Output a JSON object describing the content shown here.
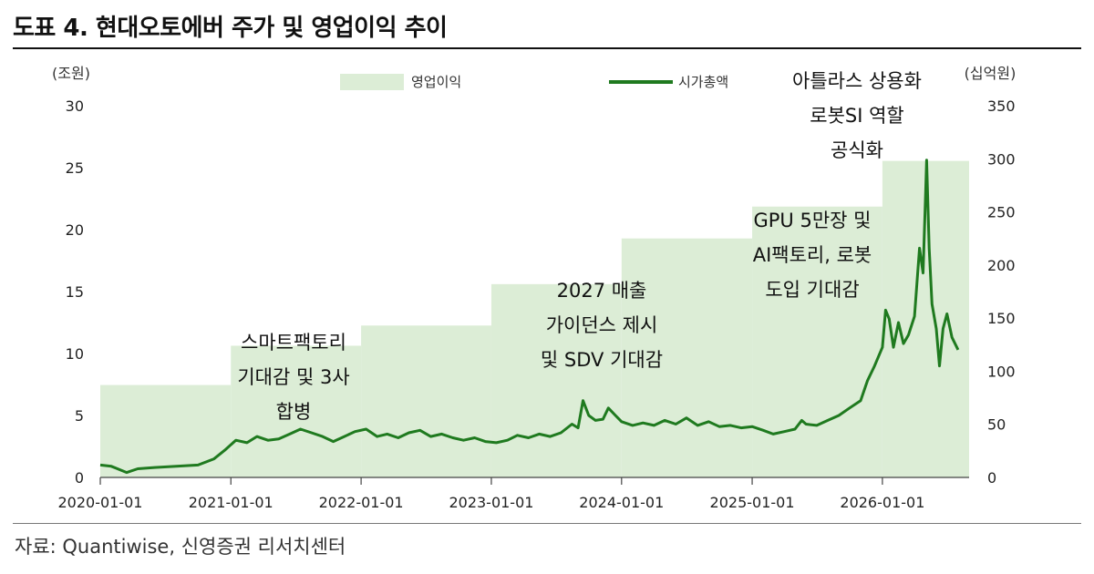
{
  "title": "도표 4. 현대오토에버 주가 및 영업이익 추이",
  "source": "자료: Quantiwise, 신영증권 리서치센터",
  "colors": {
    "line": "#1f7a1f",
    "area": "#dcedd6",
    "axis": "#444444"
  },
  "chart_data": {
    "type": "line",
    "title": "",
    "y_left": {
      "unit_label": "(조원)",
      "range": [
        0,
        30
      ],
      "ticks": [
        "0",
        "5",
        "10",
        "15",
        "20",
        "25",
        "30"
      ]
    },
    "y_right": {
      "unit_label": "(십억원)",
      "range": [
        0,
        350
      ],
      "ticks": [
        "0",
        "50",
        "100",
        "150",
        "200",
        "250",
        "300",
        "350"
      ]
    },
    "x_range": [
      "2020-01-01",
      "2026-09-01"
    ],
    "x_ticks": [
      "2020-01-01",
      "2021-01-01",
      "2022-01-01",
      "2023-01-01",
      "2024-01-01",
      "2025-01-01",
      "2026-01-01"
    ],
    "legend": {
      "position": "top",
      "area_label": "영업이익",
      "line_label": "시가총액"
    },
    "series": [
      {
        "name": "영업이익",
        "type": "step-area",
        "axis": "right",
        "points": [
          {
            "start": "2020-01-01",
            "value": 87
          },
          {
            "start": "2021-01-01",
            "value": 124
          },
          {
            "start": "2022-01-01",
            "value": 143
          },
          {
            "start": "2023-01-01",
            "value": 182
          },
          {
            "start": "2024-01-01",
            "value": 225
          },
          {
            "start": "2025-01-01",
            "value": 255
          },
          {
            "start": "2026-01-01",
            "value": 298
          }
        ]
      },
      {
        "name": "시가총액",
        "type": "line",
        "axis": "left",
        "points": [
          [
            "2020-01-01",
            1.0
          ],
          [
            "2020-02-01",
            0.9
          ],
          [
            "2020-03-15",
            0.4
          ],
          [
            "2020-04-15",
            0.7
          ],
          [
            "2020-06-01",
            0.8
          ],
          [
            "2020-08-01",
            0.9
          ],
          [
            "2020-10-01",
            1.0
          ],
          [
            "2020-11-15",
            1.5
          ],
          [
            "2020-12-15",
            2.2
          ],
          [
            "2021-01-15",
            3.0
          ],
          [
            "2021-02-15",
            2.8
          ],
          [
            "2021-03-15",
            3.3
          ],
          [
            "2021-04-15",
            3.0
          ],
          [
            "2021-05-15",
            3.1
          ],
          [
            "2021-06-15",
            3.5
          ],
          [
            "2021-07-15",
            3.9
          ],
          [
            "2021-08-15",
            3.6
          ],
          [
            "2021-09-15",
            3.3
          ],
          [
            "2021-10-15",
            2.9
          ],
          [
            "2021-11-15",
            3.3
          ],
          [
            "2021-12-15",
            3.7
          ],
          [
            "2022-01-15",
            3.9
          ],
          [
            "2022-02-15",
            3.3
          ],
          [
            "2022-03-15",
            3.5
          ],
          [
            "2022-04-15",
            3.2
          ],
          [
            "2022-05-15",
            3.6
          ],
          [
            "2022-06-15",
            3.8
          ],
          [
            "2022-07-15",
            3.3
          ],
          [
            "2022-08-15",
            3.5
          ],
          [
            "2022-09-15",
            3.2
          ],
          [
            "2022-10-15",
            3.0
          ],
          [
            "2022-11-15",
            3.2
          ],
          [
            "2022-12-15",
            2.9
          ],
          [
            "2023-01-15",
            2.8
          ],
          [
            "2023-02-15",
            3.0
          ],
          [
            "2023-03-15",
            3.4
          ],
          [
            "2023-04-15",
            3.2
          ],
          [
            "2023-05-15",
            3.5
          ],
          [
            "2023-06-15",
            3.3
          ],
          [
            "2023-07-15",
            3.6
          ],
          [
            "2023-08-15",
            4.3
          ],
          [
            "2023-09-01",
            4.0
          ],
          [
            "2023-09-15",
            6.2
          ],
          [
            "2023-10-01",
            5.0
          ],
          [
            "2023-10-20",
            4.6
          ],
          [
            "2023-11-10",
            4.7
          ],
          [
            "2023-11-25",
            5.6
          ],
          [
            "2023-12-15",
            5.0
          ],
          [
            "2024-01-01",
            4.5
          ],
          [
            "2024-02-01",
            4.2
          ],
          [
            "2024-03-01",
            4.4
          ],
          [
            "2024-04-01",
            4.2
          ],
          [
            "2024-05-01",
            4.6
          ],
          [
            "2024-06-01",
            4.3
          ],
          [
            "2024-07-01",
            4.8
          ],
          [
            "2024-08-01",
            4.2
          ],
          [
            "2024-09-01",
            4.5
          ],
          [
            "2024-10-01",
            4.1
          ],
          [
            "2024-11-01",
            4.2
          ],
          [
            "2024-12-01",
            4.0
          ],
          [
            "2025-01-01",
            4.1
          ],
          [
            "2025-02-01",
            3.8
          ],
          [
            "2025-03-01",
            3.5
          ],
          [
            "2025-04-01",
            3.7
          ],
          [
            "2025-05-01",
            3.9
          ],
          [
            "2025-05-20",
            4.6
          ],
          [
            "2025-06-01",
            4.3
          ],
          [
            "2025-07-01",
            4.2
          ],
          [
            "2025-08-01",
            4.6
          ],
          [
            "2025-09-01",
            5.0
          ],
          [
            "2025-10-01",
            5.6
          ],
          [
            "2025-11-01",
            6.2
          ],
          [
            "2025-11-20",
            7.8
          ],
          [
            "2025-12-10",
            9.0
          ],
          [
            "2026-01-01",
            10.5
          ],
          [
            "2026-01-10",
            13.5
          ],
          [
            "2026-01-20",
            12.8
          ],
          [
            "2026-02-01",
            10.5
          ],
          [
            "2026-02-15",
            12.5
          ],
          [
            "2026-03-01",
            10.8
          ],
          [
            "2026-03-15",
            11.5
          ],
          [
            "2026-04-01",
            13.0
          ],
          [
            "2026-04-15",
            18.5
          ],
          [
            "2026-04-25",
            16.5
          ],
          [
            "2026-05-01",
            22.0
          ],
          [
            "2026-05-05",
            25.6
          ],
          [
            "2026-05-12",
            18.5
          ],
          [
            "2026-05-20",
            14.0
          ],
          [
            "2026-06-01",
            12.0
          ],
          [
            "2026-06-10",
            9.0
          ],
          [
            "2026-06-20",
            12.0
          ],
          [
            "2026-07-01",
            13.2
          ],
          [
            "2026-07-15",
            11.3
          ],
          [
            "2026-08-01",
            10.3
          ]
        ]
      }
    ],
    "annotations": [
      {
        "lines": [
          "스마트팩토리",
          "기대감 및 3사",
          "합병"
        ]
      },
      {
        "lines": [
          "2027 매출",
          "가이던스 제시",
          "및 SDV 기대감"
        ]
      },
      {
        "lines": [
          "GPU 5만장 및",
          "AI팩토리, 로봇",
          "도입 기대감"
        ]
      },
      {
        "lines": [
          "아틀라스 상용화",
          "로봇SI 역할",
          "공식화"
        ]
      }
    ]
  }
}
